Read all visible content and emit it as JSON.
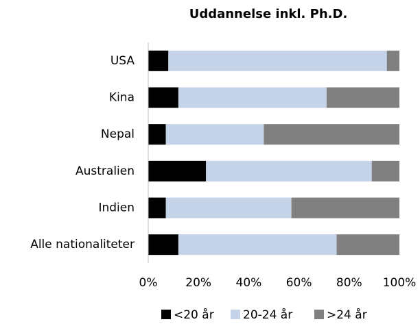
{
  "chart_data": {
    "type": "stacked_barh",
    "title": "Uddannelse inkl. Ph.D.",
    "categories": [
      "USA",
      "Kina",
      "Nepal",
      "Australien",
      "Indien",
      "Alle nationaliteter"
    ],
    "series": [
      {
        "name": "<20 år",
        "color": "#000000",
        "values": [
          8,
          12,
          7,
          23,
          7,
          12
        ]
      },
      {
        "name": "20-24 år",
        "color": "#c5d3e8",
        "values": [
          87,
          59,
          39,
          66,
          50,
          63
        ]
      },
      {
        "name": ">24 år",
        "color": "#808080",
        "values": [
          5,
          29,
          54,
          11,
          43,
          25
        ]
      }
    ],
    "xlim": [
      0,
      100
    ],
    "xticks": [
      {
        "value": 0,
        "label": "0%"
      },
      {
        "value": 20,
        "label": "20%"
      },
      {
        "value": 40,
        "label": "40%"
      },
      {
        "value": 60,
        "label": "60%"
      },
      {
        "value": 80,
        "label": "80%"
      },
      {
        "value": 100,
        "label": "100%"
      }
    ],
    "legend": "bottom",
    "grid": false
  }
}
